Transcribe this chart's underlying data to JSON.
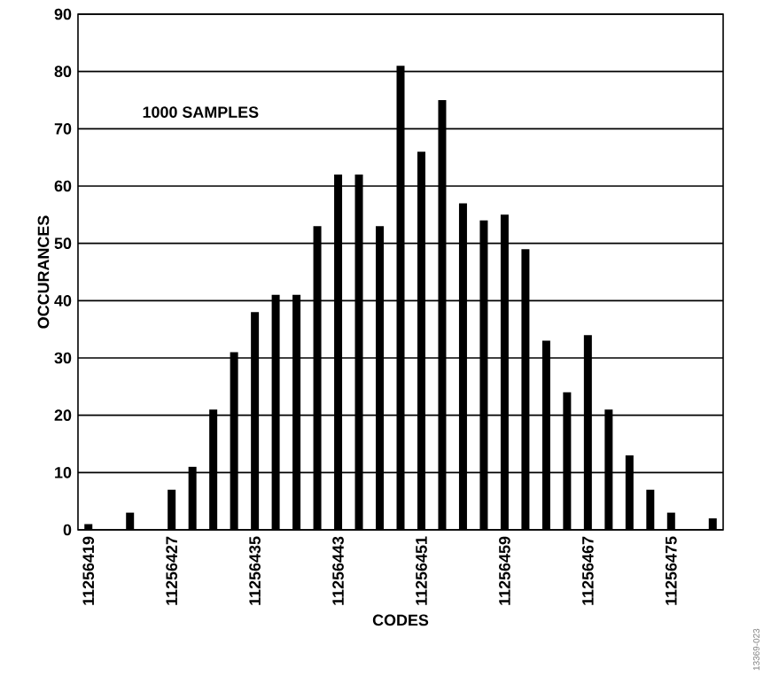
{
  "chart_data": {
    "type": "bar",
    "xlabel": "CODES",
    "ylabel": "OCCURANCES",
    "annotations": [
      "1000 SAMPLES",
      "13369-023"
    ],
    "x": [
      11256419,
      11256423,
      11256427,
      11256429,
      11256431,
      11256433,
      11256435,
      11256437,
      11256439,
      11256441,
      11256443,
      11256445,
      11256447,
      11256449,
      11256451,
      11256453,
      11256455,
      11256457,
      11256459,
      11256461,
      11256463,
      11256465,
      11256467,
      11256469,
      11256471,
      11256473,
      11256475,
      11256479
    ],
    "values": [
      1,
      3,
      7,
      11,
      21,
      31,
      38,
      41,
      41,
      53,
      62,
      62,
      53,
      81,
      66,
      75,
      57,
      54,
      55,
      49,
      33,
      24,
      34,
      21,
      13,
      7,
      3,
      2
    ],
    "color": "#000000",
    "xlim": [
      11256418,
      11256480
    ],
    "xticks": [
      11256419,
      11256427,
      11256435,
      11256443,
      11256451,
      11256459,
      11256467,
      11256475
    ],
    "ylim": [
      0,
      90
    ],
    "yticks": [
      0,
      10,
      20,
      30,
      40,
      50,
      60,
      70,
      80,
      90
    ],
    "grid": "y"
  }
}
